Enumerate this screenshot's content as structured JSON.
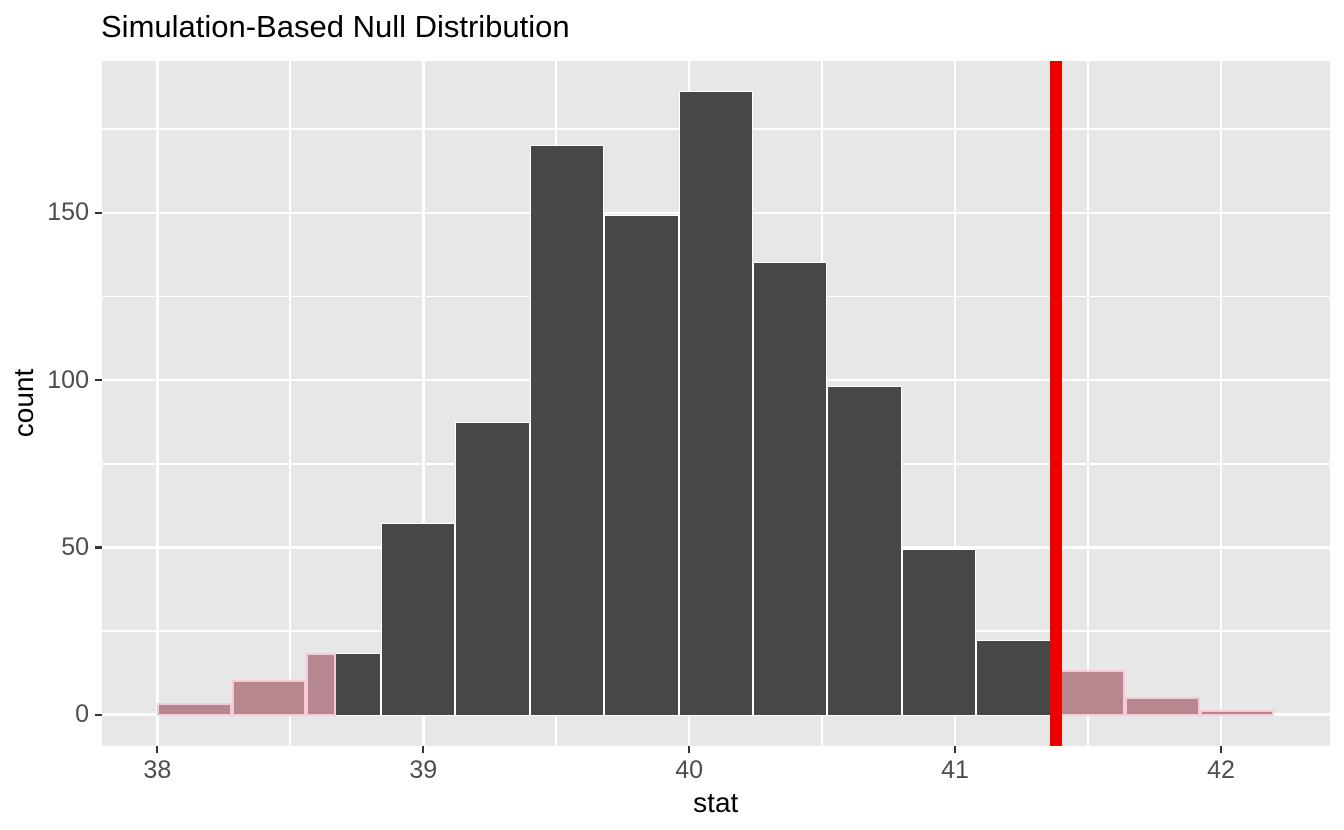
{
  "figure": {
    "title": "Simulation-Based Null Distribution",
    "x_axis_title": "stat",
    "y_axis_title": "count"
  },
  "chart_data": {
    "type": "bar",
    "subtype": "histogram-with-p-value-shading",
    "title": "Simulation-Based Null Distribution",
    "xlabel": "stat",
    "ylabel": "count",
    "x_ticks": [
      38,
      39,
      40,
      41,
      42
    ],
    "x_tick_labels": [
      "38",
      "39",
      "40",
      "41",
      "42"
    ],
    "x_minor_gridlines": [
      38.5,
      39.5,
      40.5,
      41.5
    ],
    "y_ticks": [
      0,
      50,
      100,
      150
    ],
    "y_tick_labels": [
      "0",
      "50",
      "100",
      "150"
    ],
    "y_minor_gridlines": [
      25,
      75,
      125,
      175
    ],
    "xlim": [
      37.79,
      42.41
    ],
    "ylim": [
      -9.2,
      195.4
    ],
    "grid": "on",
    "legend_position": "none",
    "bin_width": 0.28,
    "bins": [
      {
        "x0": 38.0,
        "x1": 38.28,
        "count": 3,
        "region": "shaded-tail"
      },
      {
        "x0": 38.28,
        "x1": 38.56,
        "count": 10,
        "region": "shaded-tail"
      },
      {
        "x0": 38.56,
        "x1": 38.84,
        "count": 18,
        "region": "null"
      },
      {
        "x0": 38.84,
        "x1": 39.12,
        "count": 57,
        "region": "null"
      },
      {
        "x0": 39.12,
        "x1": 39.4,
        "count": 87,
        "region": "null"
      },
      {
        "x0": 39.4,
        "x1": 39.68,
        "count": 170,
        "region": "null"
      },
      {
        "x0": 39.68,
        "x1": 39.96,
        "count": 149,
        "region": "null"
      },
      {
        "x0": 39.96,
        "x1": 40.24,
        "count": 186,
        "region": "null"
      },
      {
        "x0": 40.24,
        "x1": 40.52,
        "count": 135,
        "region": "null"
      },
      {
        "x0": 40.52,
        "x1": 40.8,
        "count": 98,
        "region": "null"
      },
      {
        "x0": 40.8,
        "x1": 41.08,
        "count": 49,
        "region": "null"
      },
      {
        "x0": 41.08,
        "x1": 41.36,
        "count": 22,
        "region": "null"
      },
      {
        "x0": 41.36,
        "x1": 41.64,
        "count": 13,
        "region": "shaded-tail"
      },
      {
        "x0": 41.64,
        "x1": 41.92,
        "count": 5,
        "region": "shaded-tail"
      },
      {
        "x0": 41.92,
        "x1": 42.2,
        "count": 1,
        "region": "shaded-tail"
      }
    ],
    "p_value_shading": {
      "direction": "two-sided",
      "left_boundary": 38.67,
      "right_boundary": 41.38,
      "partial_shaded_bin": {
        "x0": 38.56,
        "x1": 38.67,
        "count": 18
      }
    },
    "observed_stat_line": {
      "stat": 41.38,
      "stroke_px": 12.5
    },
    "colors": {
      "bar_fill": "#474747",
      "bar_border": "#FFFFFF",
      "shade_fill": "#B7878F",
      "shade_border": "#F6CBD3",
      "observed_line": "#EC0000",
      "panel_background": "#E7E7E7",
      "gridline": "#FFFFFF",
      "tick_label": "#4D4D4D",
      "tick_mark": "#333333",
      "title_color": "#000000"
    }
  }
}
